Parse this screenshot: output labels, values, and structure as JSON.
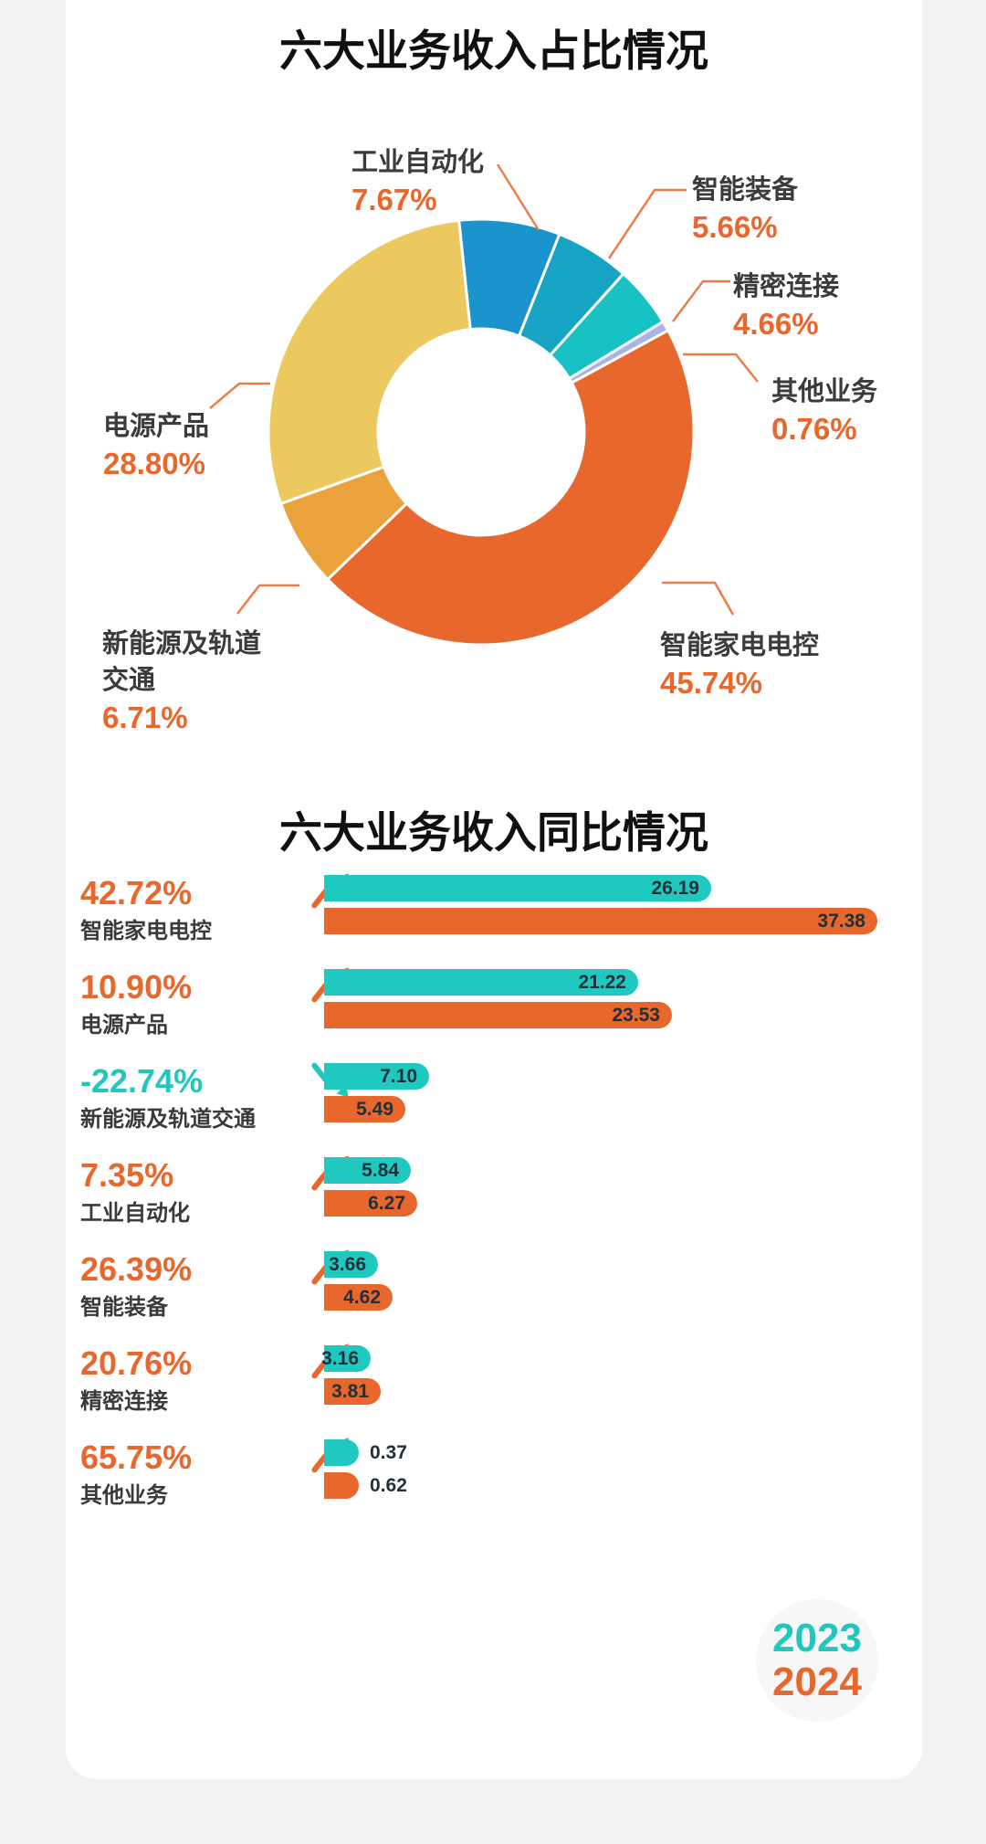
{
  "page": {
    "background_color": "#f2f2f4",
    "card_color": "#ffffff"
  },
  "colors": {
    "accent_orange": "#e8672c",
    "accent_teal": "#21c7bd",
    "leader_line": "#ed7c48",
    "value_text": "#22303a",
    "label_text": "#3b3b3b"
  },
  "chart_data": [
    {
      "type": "pie",
      "style": "donut",
      "title": "六大业务收入占比情况",
      "start_angle_deg": -6,
      "clockwise": true,
      "items": [
        {
          "label": "工业自动化",
          "value": 7.67,
          "pct_label": "7.67%",
          "color": "#1b93cc"
        },
        {
          "label": "智能装备",
          "value": 5.66,
          "pct_label": "5.66%",
          "color": "#17a3c4"
        },
        {
          "label": "精密连接",
          "value": 4.66,
          "pct_label": "4.66%",
          "color": "#18c2c4"
        },
        {
          "label": "其他业务",
          "value": 0.76,
          "pct_label": "0.76%",
          "color": "#a9b3e4"
        },
        {
          "label": "智能家电电控",
          "value": 45.74,
          "pct_label": "45.74%",
          "color": "#e8672c"
        },
        {
          "label": "新能源及轨道\n交通",
          "value": 6.71,
          "pct_label": "6.71%",
          "color": "#e9a23c"
        },
        {
          "label": "电源产品",
          "value": 28.8,
          "pct_label": "28.80%",
          "color": "#ecc95f"
        }
      ]
    },
    {
      "type": "bar",
      "orientation": "horizontal",
      "title": "六大业务收入同比情况",
      "categories": [
        "智能家电电控",
        "电源产品",
        "新能源及轨道交通",
        "工业自动化",
        "智能装备",
        "精密连接",
        "其他业务"
      ],
      "yoy_change": [
        "42.72%",
        "10.90%",
        "-22.74%",
        "7.35%",
        "26.39%",
        "20.76%",
        "65.75%"
      ],
      "trend": [
        "up",
        "up",
        "down",
        "up",
        "up",
        "up",
        "up"
      ],
      "series": [
        {
          "name": "2023",
          "color": "#1fc9c0",
          "values": [
            26.19,
            21.22,
            7.1,
            5.84,
            3.66,
            3.16,
            0.37
          ]
        },
        {
          "name": "2024",
          "color": "#e8672c",
          "values": [
            37.38,
            23.53,
            5.49,
            6.27,
            4.62,
            3.81,
            0.62
          ]
        }
      ],
      "value_decimals": 2,
      "legend_position": "bottom-right"
    }
  ]
}
